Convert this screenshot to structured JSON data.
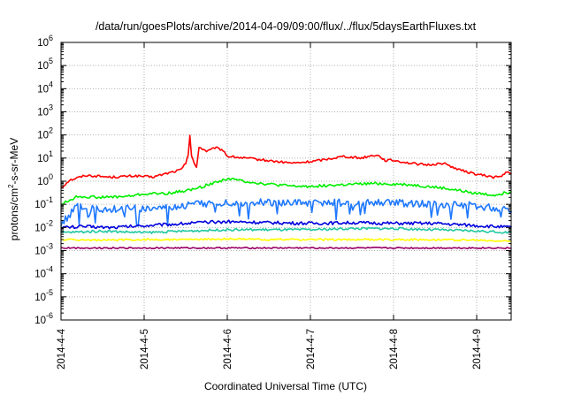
{
  "chart_data": {
    "type": "line",
    "title": "/data/run/goesPlots/archive/2014-04-09/09:00/flux/../flux/5daysEarthFluxes.txt",
    "xlabel": "Coordinated Universal Time (UTC)",
    "ylabel": "protons/cm2-s-sr-MeV",
    "ylabel_parts": {
      "base": "protons/cm",
      "sup": "2",
      "rest": "-s-sr-MeV"
    },
    "y_scale": "log",
    "ylim": [
      1e-06,
      1000000.0
    ],
    "y_ticks": [
      {
        "exp": -6,
        "label": "-6"
      },
      {
        "exp": -5,
        "label": "-5"
      },
      {
        "exp": -4,
        "label": "-4"
      },
      {
        "exp": -3,
        "label": "-3"
      },
      {
        "exp": -2,
        "label": "-2"
      },
      {
        "exp": -1,
        "label": "-1"
      },
      {
        "exp": 0,
        "label": "0"
      },
      {
        "exp": 1,
        "label": "1"
      },
      {
        "exp": 2,
        "label": "2"
      },
      {
        "exp": 3,
        "label": "3"
      },
      {
        "exp": 4,
        "label": "4"
      },
      {
        "exp": 5,
        "label": "5"
      },
      {
        "exp": 6,
        "label": "6"
      }
    ],
    "y_tick_base": "10",
    "x_ticks": [
      {
        "day": 0,
        "label": "2014-4-4"
      },
      {
        "day": 1,
        "label": "2014-4-5"
      },
      {
        "day": 2,
        "label": "2014-4-6"
      },
      {
        "day": 3,
        "label": "2014-4-7"
      },
      {
        "day": 4,
        "label": "2014-4-8"
      },
      {
        "day": 5,
        "label": "2014-4-9"
      }
    ],
    "xlim_days": [
      0,
      5.42
    ],
    "grid": true,
    "legend": "none",
    "series": [
      {
        "color": "#ff0000",
        "points": [
          [
            0,
            0.5
          ],
          [
            0.1,
            1.1
          ],
          [
            0.3,
            1.8
          ],
          [
            0.6,
            1.5
          ],
          [
            0.9,
            1.7
          ],
          [
            1.1,
            1.5
          ],
          [
            1.3,
            2.3
          ],
          [
            1.45,
            3.2
          ],
          [
            1.5,
            6
          ],
          [
            1.53,
            15
          ],
          [
            1.55,
            100
          ],
          [
            1.57,
            12
          ],
          [
            1.6,
            6
          ],
          [
            1.63,
            4
          ],
          [
            1.66,
            30
          ],
          [
            1.7,
            25
          ],
          [
            1.75,
            20
          ],
          [
            1.8,
            22
          ],
          [
            1.85,
            28
          ],
          [
            1.9,
            25
          ],
          [
            1.95,
            22
          ],
          [
            2.0,
            12
          ],
          [
            2.2,
            10
          ],
          [
            2.4,
            8.5
          ],
          [
            2.6,
            7
          ],
          [
            2.8,
            6
          ],
          [
            3.0,
            7
          ],
          [
            3.2,
            9
          ],
          [
            3.4,
            12
          ],
          [
            3.6,
            10
          ],
          [
            3.8,
            14
          ],
          [
            3.9,
            8
          ],
          [
            4.0,
            8
          ],
          [
            4.2,
            6
          ],
          [
            4.4,
            5
          ],
          [
            4.6,
            6
          ],
          [
            4.8,
            3
          ],
          [
            5.0,
            2
          ],
          [
            5.2,
            1.5
          ],
          [
            5.3,
            1.6
          ],
          [
            5.35,
            2.5
          ],
          [
            5.42,
            2
          ]
        ]
      },
      {
        "color": "#00ee00",
        "points": [
          [
            0,
            0.1
          ],
          [
            0.2,
            0.22
          ],
          [
            0.5,
            0.2
          ],
          [
            0.8,
            0.22
          ],
          [
            1.0,
            0.28
          ],
          [
            1.3,
            0.3
          ],
          [
            1.6,
            0.45
          ],
          [
            2.0,
            1.3
          ],
          [
            2.4,
            0.8
          ],
          [
            2.8,
            0.6
          ],
          [
            3.0,
            0.6
          ],
          [
            3.4,
            0.7
          ],
          [
            3.8,
            0.8
          ],
          [
            4.2,
            0.7
          ],
          [
            4.6,
            0.5
          ],
          [
            5.0,
            0.3
          ],
          [
            5.2,
            0.25
          ],
          [
            5.42,
            0.35
          ]
        ]
      },
      {
        "color": "#1e78ff",
        "points": [
          [
            0,
            0.015
          ],
          [
            0.2,
            0.08
          ],
          [
            0.5,
            0.06
          ],
          [
            0.8,
            0.07
          ],
          [
            1.0,
            0.06
          ],
          [
            1.3,
            0.07
          ],
          [
            1.6,
            0.1
          ],
          [
            2.0,
            0.12
          ],
          [
            2.4,
            0.12
          ],
          [
            2.8,
            0.11
          ],
          [
            3.2,
            0.12
          ],
          [
            3.6,
            0.12
          ],
          [
            4.0,
            0.12
          ],
          [
            4.4,
            0.1
          ],
          [
            4.8,
            0.1
          ],
          [
            5.2,
            0.07
          ],
          [
            5.42,
            0.05
          ]
        ]
      },
      {
        "color": "#0000dd",
        "points": [
          [
            0,
            0.01
          ],
          [
            0.3,
            0.011
          ],
          [
            0.6,
            0.01
          ],
          [
            1.0,
            0.012
          ],
          [
            1.5,
            0.015
          ],
          [
            2.0,
            0.018
          ],
          [
            2.5,
            0.016
          ],
          [
            3.0,
            0.015
          ],
          [
            3.5,
            0.016
          ],
          [
            4.0,
            0.015
          ],
          [
            4.5,
            0.015
          ],
          [
            5.0,
            0.012
          ],
          [
            5.42,
            0.01
          ]
        ]
      },
      {
        "color": "#20c8a0",
        "points": [
          [
            0,
            0.006
          ],
          [
            0.5,
            0.007
          ],
          [
            1.0,
            0.006
          ],
          [
            1.5,
            0.007
          ],
          [
            2.0,
            0.008
          ],
          [
            2.5,
            0.008
          ],
          [
            3.0,
            0.008
          ],
          [
            3.5,
            0.009
          ],
          [
            4.0,
            0.009
          ],
          [
            4.5,
            0.008
          ],
          [
            5.0,
            0.007
          ],
          [
            5.42,
            0.006
          ]
        ]
      },
      {
        "color": "#ffff00",
        "points": [
          [
            0,
            0.003
          ],
          [
            0.5,
            0.0028
          ],
          [
            1.0,
            0.003
          ],
          [
            1.5,
            0.003
          ],
          [
            2.0,
            0.0032
          ],
          [
            2.5,
            0.003
          ],
          [
            3.0,
            0.003
          ],
          [
            3.5,
            0.003
          ],
          [
            4.0,
            0.003
          ],
          [
            4.5,
            0.003
          ],
          [
            5.0,
            0.0028
          ],
          [
            5.42,
            0.0025
          ]
        ]
      },
      {
        "color": "#990066",
        "points": [
          [
            0,
            0.0013
          ],
          [
            0.5,
            0.0013
          ],
          [
            1.0,
            0.0013
          ],
          [
            1.5,
            0.0013
          ],
          [
            2.0,
            0.0013
          ],
          [
            2.5,
            0.0013
          ],
          [
            3.0,
            0.0013
          ],
          [
            3.5,
            0.0013
          ],
          [
            4.0,
            0.0013
          ],
          [
            4.5,
            0.0013
          ],
          [
            5.0,
            0.0013
          ],
          [
            5.42,
            0.0013
          ]
        ]
      }
    ]
  }
}
